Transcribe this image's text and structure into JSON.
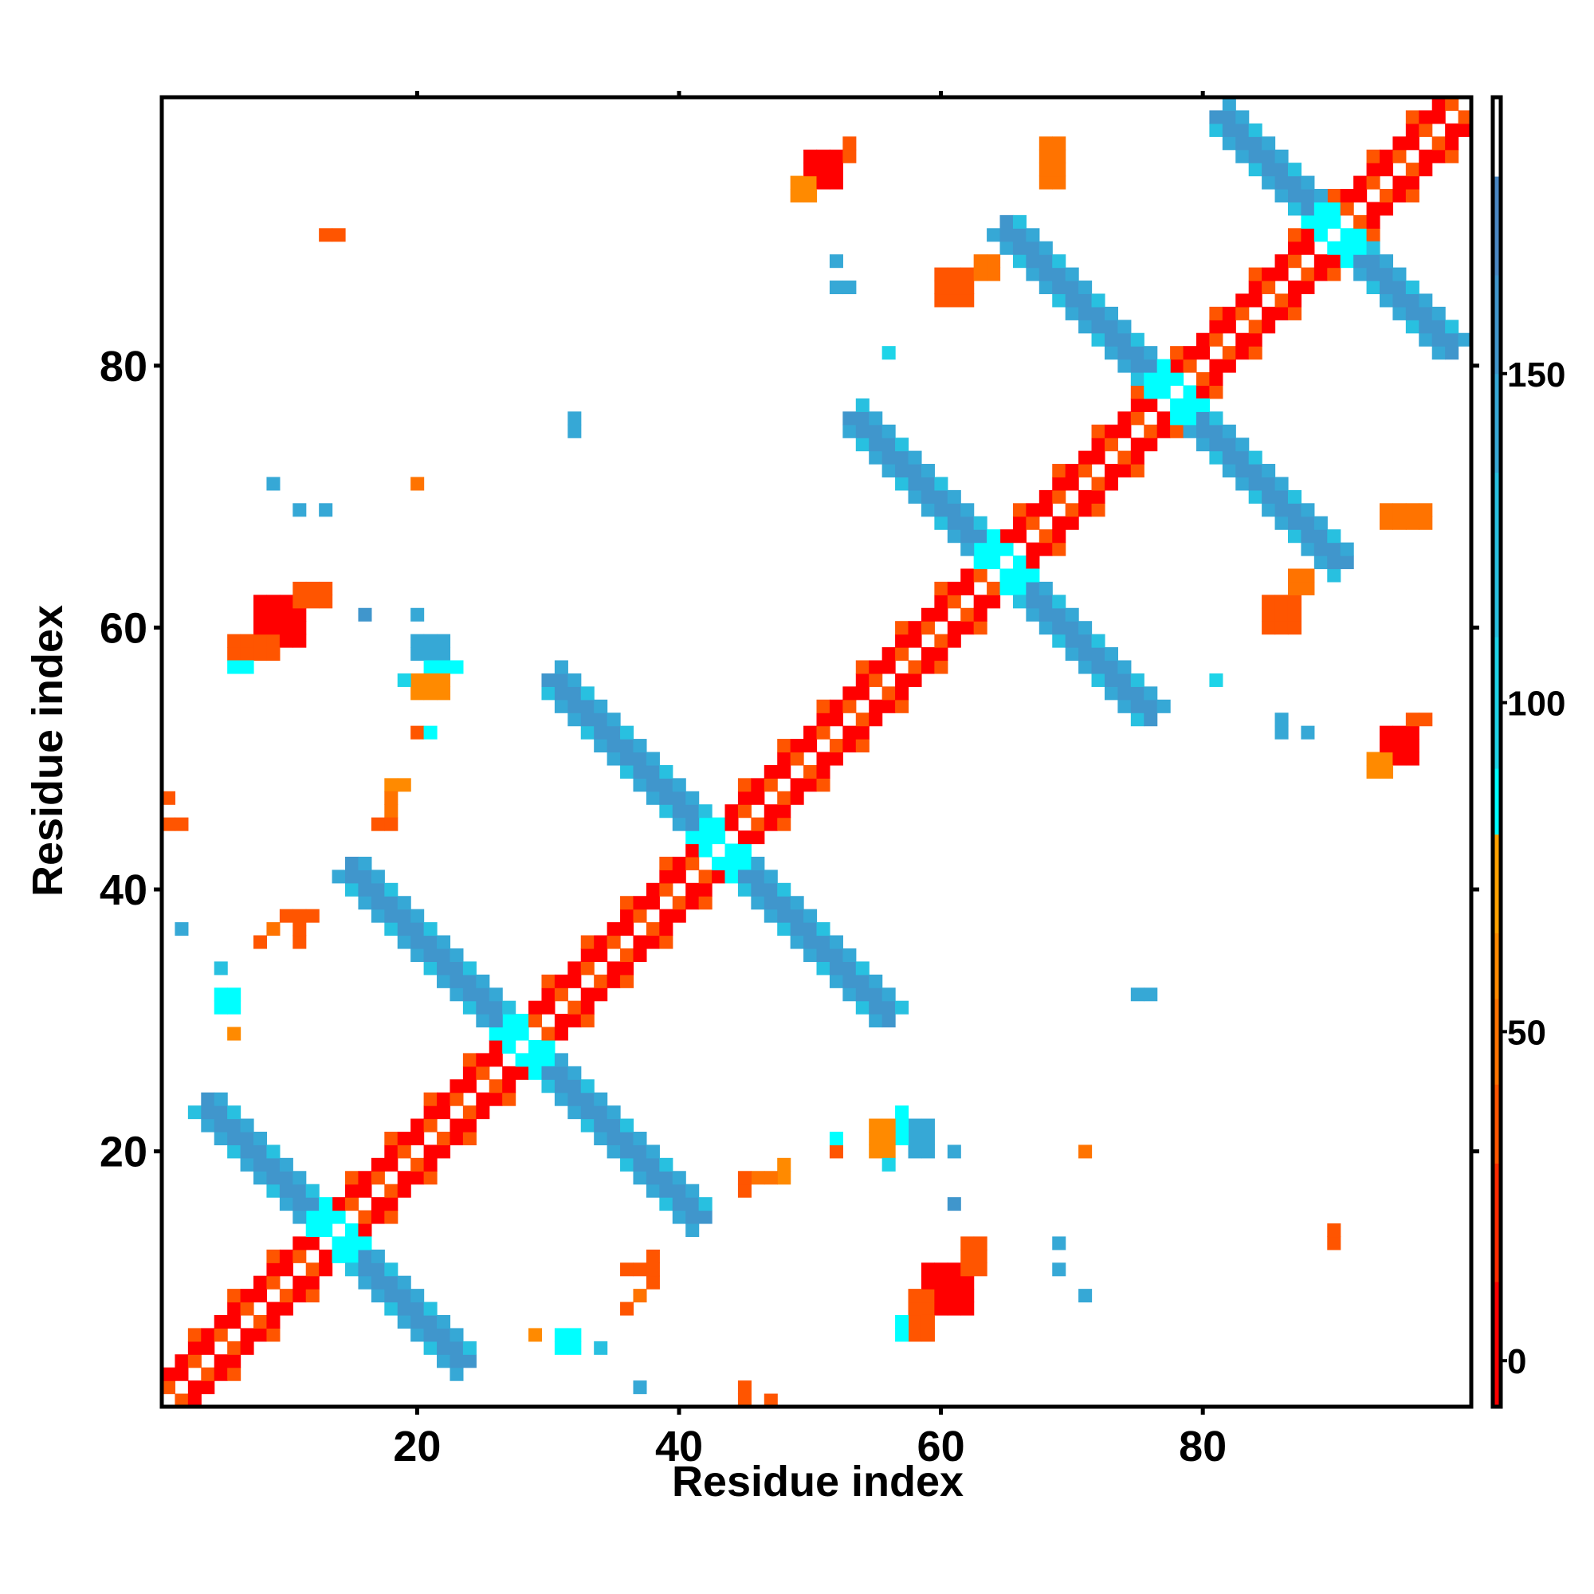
{
  "chart_data": {
    "type": "heatmap",
    "title": "",
    "xlabel": "Residue index",
    "ylabel": "Residue index",
    "xlim": [
      0.5,
      100.5
    ],
    "ylim": [
      0.5,
      100.5
    ],
    "n_residues": 100,
    "symmetric": true,
    "x_ticks": [
      20,
      40,
      60,
      80
    ],
    "y_ticks": [
      20,
      40,
      60,
      80
    ],
    "colorbar": {
      "range": [
        -7,
        192
      ],
      "ticks": [
        0,
        50,
        100,
        150
      ],
      "stops": [
        {
          "to": 12,
          "color": "#ff0000"
        },
        {
          "to": 30,
          "color": "#ff2a00"
        },
        {
          "to": 42,
          "color": "#ff5500"
        },
        {
          "to": 55,
          "color": "#ff7300"
        },
        {
          "to": 65,
          "color": "#ff8a00"
        },
        {
          "to": 80,
          "color": "#ffa200"
        },
        {
          "to": 90,
          "color": "#00ffff"
        },
        {
          "to": 110,
          "color": "#1ed4e8"
        },
        {
          "to": 135,
          "color": "#28c0e0"
        },
        {
          "to": 150,
          "color": "#36a8d6"
        },
        {
          "to": 165,
          "color": "#4096cc"
        },
        {
          "to": 180,
          "color": "#4a88c4"
        },
        {
          "to": 192,
          "color": "#ffffff"
        }
      ]
    },
    "diagonal_band": {
      "offset1_values": [
        12,
        40
      ],
      "offset2_value": 10,
      "offset3_value": 35
    },
    "strand_pairings": [
      {
        "anti_diagonal_sum": 28,
        "half_span": 20,
        "core_value": 165,
        "edge_value": 125,
        "crossing_value": 88
      },
      {
        "anti_diagonal_sum": 57,
        "half_span": 27,
        "core_value": 165,
        "edge_value": 125,
        "crossing_value": 88
      },
      {
        "anti_diagonal_sum": 87,
        "half_span": 26,
        "core_value": 165,
        "edge_value": 125,
        "crossing_value": 88
      },
      {
        "anti_diagonal_sum": 130,
        "half_span": 23,
        "core_value": 165,
        "edge_value": 125,
        "crossing_value": 88
      },
      {
        "anti_diagonal_sum": 156,
        "half_span": 26,
        "core_value": 165,
        "edge_value": 125,
        "crossing_value": 88
      },
      {
        "anti_diagonal_sum": 181,
        "half_span": 18,
        "core_value": 165,
        "edge_value": 125,
        "crossing_value": 88
      }
    ],
    "contact_patches": [
      [
        8,
        11,
        59,
        62,
        10
      ],
      [
        6,
        9,
        58,
        59,
        35
      ],
      [
        11,
        13,
        62,
        63,
        35
      ],
      [
        6,
        7,
        57,
        57,
        85
      ],
      [
        13,
        14,
        90,
        90,
        40
      ],
      [
        50,
        52,
        94,
        96,
        12
      ],
      [
        49,
        50,
        93,
        94,
        60
      ],
      [
        53,
        53,
        96,
        97,
        40
      ],
      [
        68,
        69,
        94,
        97,
        45
      ],
      [
        60,
        62,
        85,
        87,
        40
      ],
      [
        63,
        64,
        87,
        88,
        55
      ],
      [
        52,
        53,
        86,
        86,
        140
      ],
      [
        52,
        52,
        88,
        88,
        140
      ],
      [
        56,
        56,
        81,
        81,
        100
      ],
      [
        32,
        32,
        75,
        76,
        150
      ],
      [
        9,
        9,
        71,
        71,
        140
      ],
      [
        11,
        11,
        69,
        69,
        150
      ],
      [
        13,
        13,
        69,
        69,
        140
      ],
      [
        20,
        20,
        71,
        71,
        45
      ],
      [
        20,
        22,
        58,
        59,
        150
      ],
      [
        21,
        23,
        57,
        57,
        90
      ],
      [
        20,
        22,
        55,
        56,
        60
      ],
      [
        19,
        19,
        56,
        56,
        100
      ],
      [
        20,
        20,
        52,
        52,
        40
      ],
      [
        21,
        21,
        52,
        52,
        90
      ],
      [
        16,
        16,
        61,
        61,
        160
      ],
      [
        20,
        20,
        61,
        61,
        150
      ],
      [
        18,
        19,
        48,
        48,
        60
      ],
      [
        18,
        18,
        46,
        47,
        45
      ],
      [
        17,
        18,
        45,
        45,
        40
      ],
      [
        1,
        1,
        47,
        47,
        40
      ],
      [
        1,
        2,
        45,
        45,
        40
      ],
      [
        10,
        12,
        38,
        38,
        40
      ],
      [
        9,
        9,
        37,
        37,
        45
      ],
      [
        11,
        11,
        36,
        37,
        40
      ],
      [
        8,
        8,
        36,
        36,
        40
      ],
      [
        2,
        2,
        37,
        37,
        150
      ],
      [
        5,
        5,
        34,
        34,
        120
      ],
      [
        5,
        6,
        31,
        32,
        90
      ],
      [
        6,
        6,
        29,
        29,
        60
      ]
    ]
  }
}
